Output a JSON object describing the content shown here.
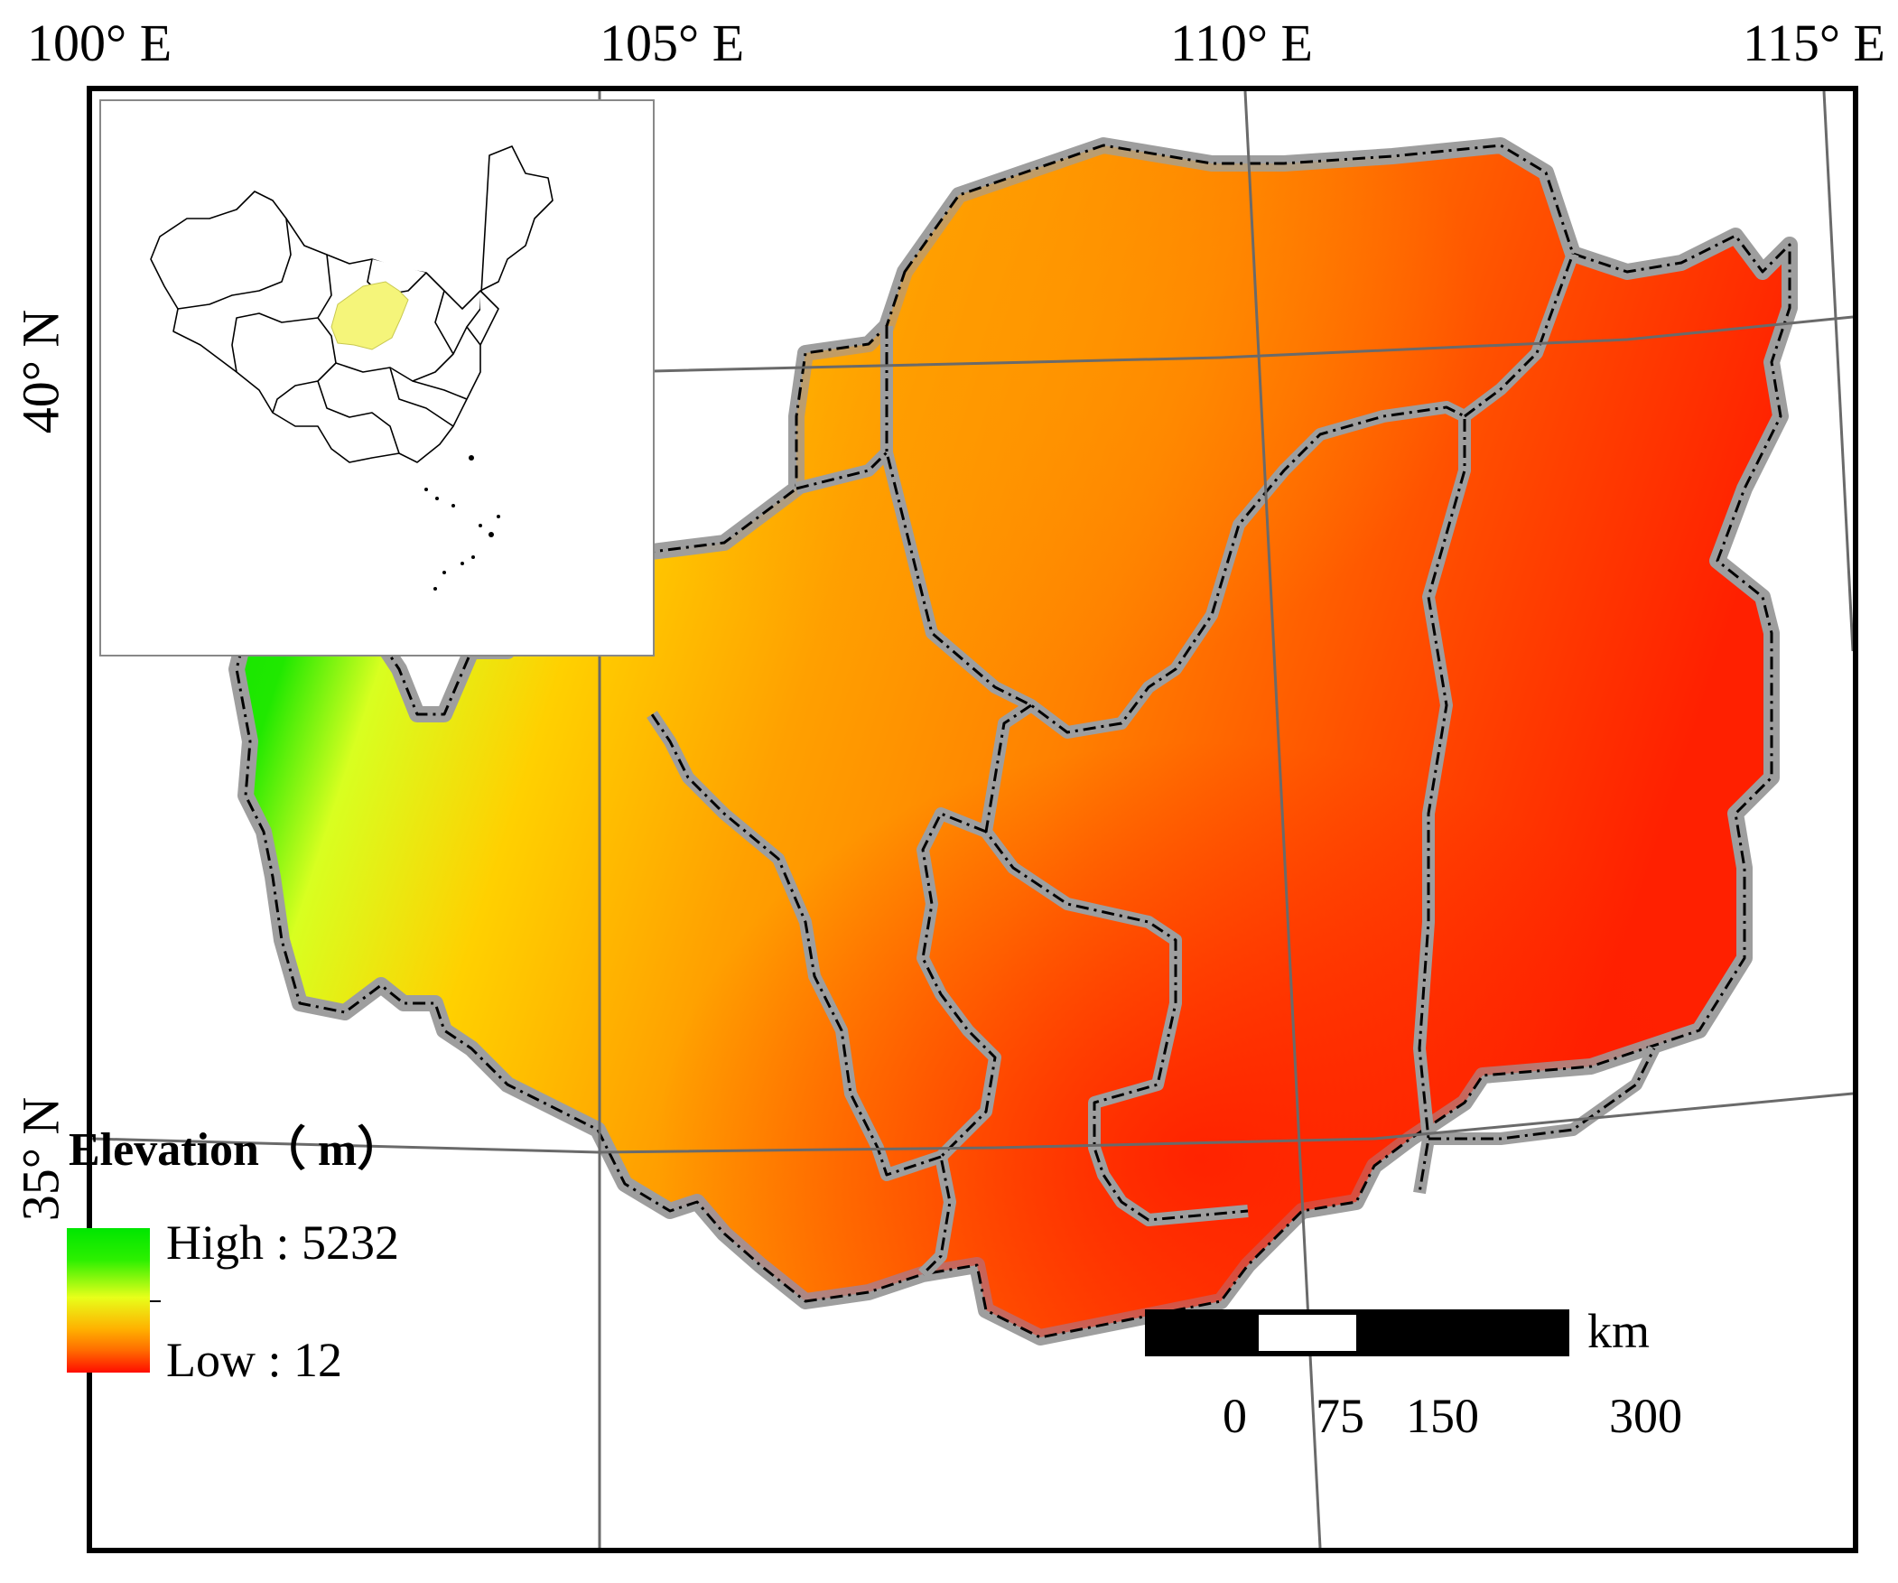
{
  "graticule": {
    "longitudes": [
      "100° E",
      "105° E",
      "110° E",
      "115° E"
    ],
    "latitudes": [
      "40° N",
      "35° N"
    ]
  },
  "legend": {
    "title": "Elevation（ m）",
    "high_label": "High : 5232",
    "low_label": "Low : 12",
    "high_value": 5232,
    "low_value": 12,
    "colors": {
      "high": "#00e600",
      "mid": "#e8ff1a",
      "low": "#ff0d00"
    }
  },
  "scale_bar": {
    "unit": "km",
    "ticks": [
      "0",
      "75",
      "150",
      "300"
    ]
  },
  "inset": {
    "description_icon": "china-locator-map-icon",
    "highlight_color": "#f5f57a"
  },
  "colors": {
    "boundary_halo": "#9e9e9e",
    "boundary_line": "#000000",
    "graticule": "#6a6a6a"
  }
}
